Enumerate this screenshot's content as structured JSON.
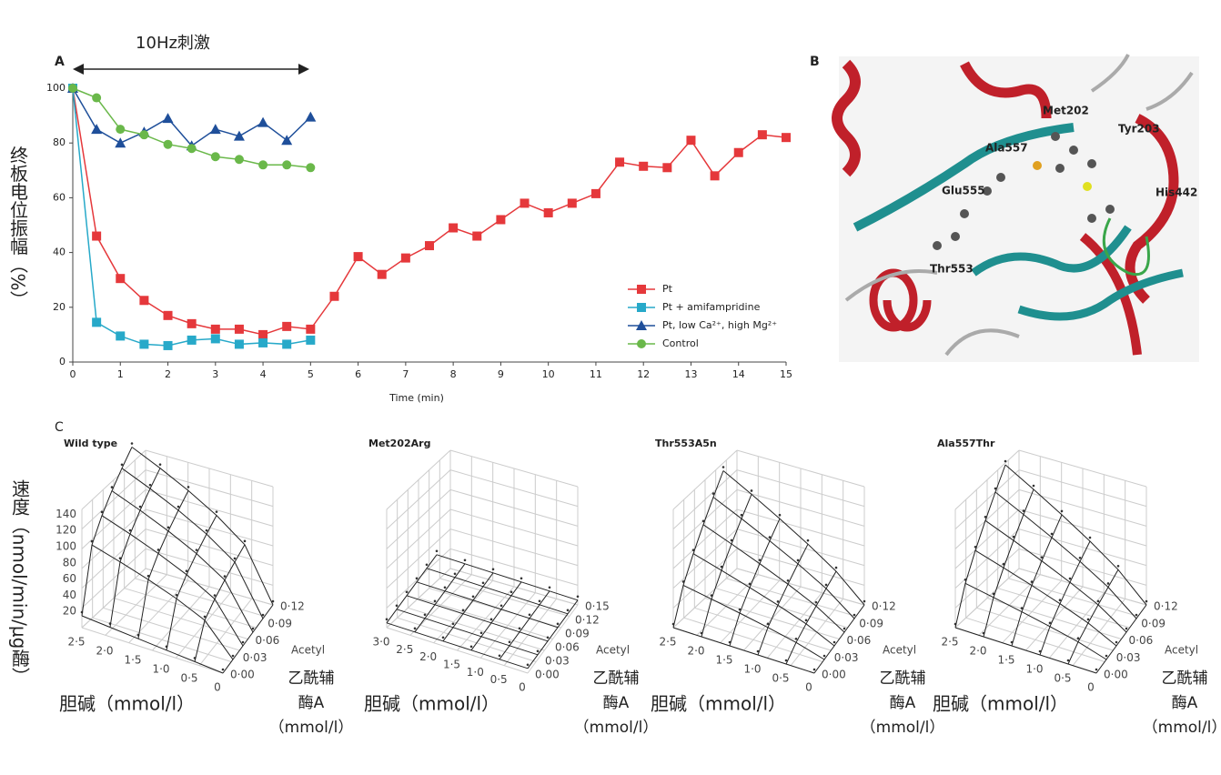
{
  "chart_data": {
    "type": "line",
    "panel": "A",
    "annotation": "10Hz刺激",
    "ylabel": "终板电位振幅（%）",
    "xlabel": "Time (min)",
    "x": [
      0,
      0.5,
      1,
      1.5,
      2,
      2.5,
      3,
      3.5,
      4,
      4.5,
      5,
      5.5,
      6,
      6.5,
      7,
      7.5,
      8,
      8.5,
      9,
      9.5,
      10,
      10.5,
      11,
      11.5,
      12,
      12.5,
      13,
      13.5,
      14,
      14.5,
      15
    ],
    "xlim": [
      0,
      15
    ],
    "xticks": [
      0,
      1,
      2,
      3,
      4,
      5,
      6,
      7,
      8,
      9,
      10,
      11,
      12,
      13,
      14,
      15
    ],
    "ylim": [
      0,
      100
    ],
    "yticks": [
      0,
      20,
      40,
      60,
      80,
      100
    ],
    "legend": "lower right",
    "series": [
      {
        "name": "Pt",
        "color": "#e5383b",
        "marker": "square",
        "values": [
          100,
          46,
          30.5,
          22.5,
          17,
          14,
          12,
          12,
          10,
          13,
          12,
          24,
          38.5,
          32,
          38,
          42.5,
          49,
          46,
          52,
          58,
          54.5,
          58,
          61.5,
          73,
          71.5,
          71,
          81,
          68,
          76.5,
          83,
          82
        ]
      },
      {
        "name": "Pt + amifampridine",
        "color": "#27a9c9",
        "marker": "square",
        "values": [
          100,
          14.5,
          9.5,
          6.5,
          6,
          8,
          8.5,
          6.5,
          7,
          6.5,
          8,
          null,
          null,
          null,
          null,
          null,
          null,
          null,
          null,
          null,
          null,
          null,
          null,
          null,
          null,
          null,
          null,
          null,
          null,
          null,
          null
        ]
      },
      {
        "name": "Pt, low Ca²⁺, high Mg²⁺",
        "color": "#1f4f9a",
        "marker": "triangle",
        "values": [
          100,
          85,
          80,
          84,
          89,
          79,
          85,
          82.5,
          87.5,
          81,
          89.5,
          null,
          null,
          null,
          null,
          null,
          null,
          null,
          null,
          null,
          null,
          null,
          null,
          null,
          null,
          null,
          null,
          null,
          null,
          null,
          null
        ]
      },
      {
        "name": "Control",
        "color": "#6ab84a",
        "marker": "circle",
        "values": [
          100,
          96.5,
          85,
          83,
          79.5,
          78,
          75,
          74,
          72,
          72,
          71,
          null,
          null,
          null,
          null,
          null,
          null,
          null,
          null,
          null,
          null,
          null,
          null,
          null,
          null,
          null,
          null,
          null,
          null,
          null,
          null
        ]
      }
    ]
  },
  "panel_b": {
    "label": "B",
    "residues": [
      "Met202",
      "Tyr203",
      "Ala557",
      "Glu555",
      "His442",
      "Thr553"
    ]
  },
  "panel_c": {
    "label": "C",
    "z_label": "速度（nmol/min/μg酶）",
    "plots": [
      {
        "title": "Wild type",
        "z_ticks": [
          "20",
          "40",
          "60",
          "80",
          "100",
          "120",
          "140"
        ],
        "choline_ticks": [
          "2·5",
          "2·0",
          "1·5",
          "1·0",
          "0·5",
          "0"
        ],
        "acetyl_ticks": [
          "0·00",
          "0·03",
          "0·06",
          "0·09",
          "0·12"
        ],
        "acetyl_axis": "Acetyl",
        "x_label": "胆碱（mmol/l）",
        "y_label": [
          "乙酰辅",
          "酶A",
          "（mmol/l）"
        ]
      },
      {
        "title": "Met202Arg",
        "z_ticks": [],
        "choline_ticks": [
          "3·0",
          "2·5",
          "2·0",
          "1·5",
          "1·0",
          "0·5",
          "0"
        ],
        "acetyl_ticks": [
          "0·00",
          "0·03",
          "0·06",
          "0·09",
          "0·12",
          "0·15"
        ],
        "acetyl_axis": "Acetyl",
        "x_label": "胆碱（mmol/l）",
        "y_label": [
          "乙酰辅",
          "酶A",
          "（mmol/l）"
        ]
      },
      {
        "title": "Thr553A5n",
        "z_ticks": [],
        "choline_ticks": [
          "2·5",
          "2·0",
          "1·5",
          "1·0",
          "0·5",
          "0"
        ],
        "acetyl_ticks": [
          "0·00",
          "0·03",
          "0·06",
          "0·09",
          "0·12"
        ],
        "acetyl_axis": "Acetyl",
        "x_label": "胆碱（mmol/l）",
        "y_label": [
          "乙酰辅",
          "酶A",
          "（mmol/l）"
        ]
      },
      {
        "title": "Ala557Thr",
        "z_ticks": [],
        "choline_ticks": [
          "2·5",
          "2·0",
          "1·5",
          "1·0",
          "0·5",
          "0"
        ],
        "acetyl_ticks": [
          "0·00",
          "0·03",
          "0·06",
          "0·09",
          "0·12"
        ],
        "acetyl_axis": "Acetyl",
        "x_label": "胆碱（mmol/l）",
        "y_label": [
          "乙酰辅",
          "酶A",
          "（mmol/l）"
        ]
      }
    ]
  }
}
